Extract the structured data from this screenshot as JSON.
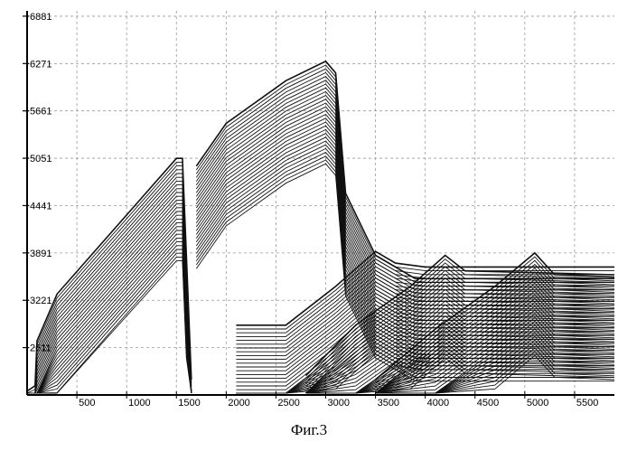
{
  "caption": "Фиг.3",
  "chart_data": {
    "type": "line",
    "title": "",
    "xlabel": "",
    "ylabel": "",
    "grid": true,
    "x_ticks": [
      500,
      1000,
      1500,
      2000,
      2500,
      3000,
      3500,
      4000,
      4500,
      5000,
      5500
    ],
    "y_ticks": [
      2611,
      3221,
      3831,
      4441,
      5051,
      5661,
      6271,
      6881
    ],
    "y_tick_labels": [
      "2611",
      "3221",
      "3891",
      "4441",
      "5051",
      "5661",
      "6271",
      "6881"
    ],
    "xlim": [
      0,
      5900
    ],
    "ylim": [
      2001,
      6950
    ],
    "series": [
      {
        "values": [
          [
            0,
            2050
          ],
          [
            80,
            2120
          ],
          [
            100,
            2700
          ],
          [
            300,
            3300
          ],
          [
            1500,
            5050
          ],
          [
            1560,
            5050
          ],
          [
            1600,
            3800
          ],
          [
            1650,
            2200
          ]
        ]
      },
      {
        "values": [
          [
            1700,
            4950
          ],
          [
            2000,
            5500
          ],
          [
            2600,
            6050
          ],
          [
            3000,
            6300
          ],
          [
            3100,
            6150
          ],
          [
            3200,
            4600
          ],
          [
            3500,
            3800
          ],
          [
            3900,
            3500
          ],
          [
            4300,
            3500
          ],
          [
            5900,
            3500
          ]
        ]
      },
      {
        "values": [
          [
            2100,
            2900
          ],
          [
            2600,
            2900
          ],
          [
            3100,
            3400
          ],
          [
            3500,
            3850
          ],
          [
            3700,
            3700
          ],
          [
            4000,
            3650
          ],
          [
            5900,
            3650
          ]
        ]
      },
      {
        "values": [
          [
            2800,
            2250
          ],
          [
            3300,
            2900
          ],
          [
            3850,
            3400
          ],
          [
            4200,
            3800
          ],
          [
            4400,
            3600
          ],
          [
            5900,
            3550
          ]
        ]
      },
      {
        "values": [
          [
            3500,
            2200
          ],
          [
            4100,
            2850
          ],
          [
            4700,
            3400
          ],
          [
            5100,
            3830
          ],
          [
            5300,
            3550
          ],
          [
            5900,
            3520
          ]
        ]
      }
    ]
  }
}
